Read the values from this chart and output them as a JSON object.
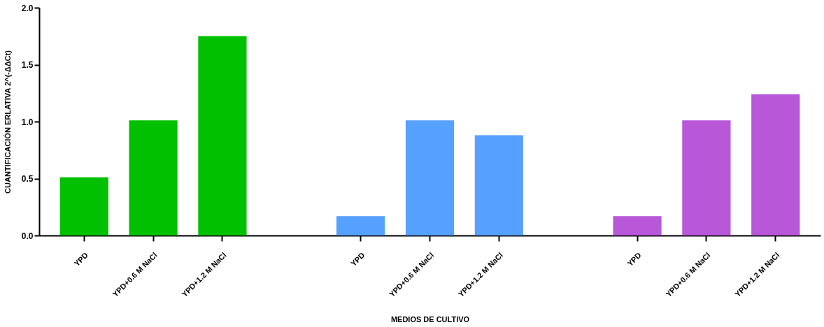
{
  "chart_data": {
    "type": "bar",
    "xlabel": "MEDIOS DE CULTIVO",
    "ylabel": "CUANTIFICACIÓN ERLATIVA 2^(-ΔΔCt)",
    "categories": [
      "YPD",
      "YPD+0.6 M NaCl",
      "YPD+1.2 M NaCl",
      "YPD",
      "YPD+0.6 M NaCl",
      "YPD+1.2 M NaCl",
      "YPD",
      "YPD+0.6 M NaCl",
      "YPD+1.2 M NaCl"
    ],
    "values": [
      0.51,
      1.01,
      1.75,
      0.17,
      1.01,
      0.88,
      0.17,
      1.01,
      1.24
    ],
    "colors": [
      "#00c000",
      "#00c000",
      "#00c000",
      "#56a0ff",
      "#56a0ff",
      "#56a0ff",
      "#b857d8",
      "#b857d8",
      "#b857d8"
    ],
    "ylim": [
      0,
      2.0
    ],
    "yticks": [
      {
        "value": 0,
        "label": "0.0"
      },
      {
        "value": 0.5,
        "label": "0.5"
      },
      {
        "value": 1.0,
        "label": "1.0"
      },
      {
        "value": 1.5,
        "label": "1.5"
      },
      {
        "value": 2.0,
        "label": "2.0"
      }
    ],
    "grid": false
  }
}
